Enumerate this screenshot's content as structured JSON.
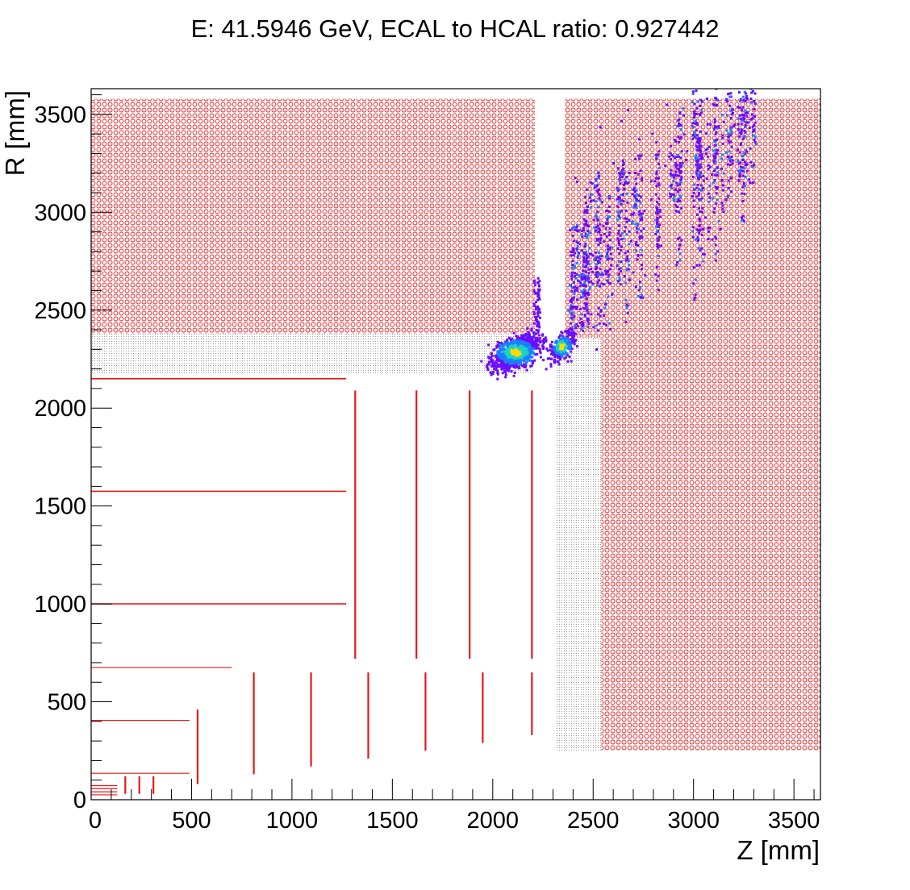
{
  "chart_data": {
    "type": "scatter",
    "title": "E: 41.5946 GeV, ECAL to HCAL ratio: 0.927442",
    "xlabel": "Z [mm]",
    "ylabel": "R [mm]",
    "xlim": [
      0,
      3630
    ],
    "ylim": [
      0,
      3630
    ],
    "x_ticks": [
      0,
      500,
      1000,
      1500,
      2000,
      2500,
      3000,
      3500
    ],
    "y_ticks": [
      0,
      500,
      1000,
      1500,
      2000,
      2500,
      3000,
      3500
    ],
    "x_tick_labels": [
      "0",
      "500",
      "1000",
      "1500",
      "2000",
      "2500",
      "3000",
      "3500"
    ],
    "y_tick_labels": [
      "0",
      "500",
      "1000",
      "1500",
      "2000",
      "2500",
      "3000",
      "3500"
    ],
    "grid": false,
    "legend": "none",
    "colors": {
      "detector": "#e31a1c",
      "hatch_grey": "#8a8a8a",
      "hit_low": "#6a0dff",
      "hit_mid": "#1a7fff",
      "hit_high": "#19d3c5",
      "hit_peak": "#ffd900"
    },
    "detector_regions": [
      {
        "name": "barrel-hcal",
        "style": "red-circles",
        "z": [
          0,
          2210
        ],
        "r": [
          2380,
          3580
        ]
      },
      {
        "name": "endcap-hcal",
        "style": "red-circles",
        "z": [
          2360,
          3630
        ],
        "r": [
          2360,
          3580
        ]
      },
      {
        "name": "endcap-hcal-lower",
        "style": "red-circles",
        "z": [
          2540,
          3630
        ],
        "r": [
          250,
          2360
        ]
      },
      {
        "name": "barrel-ecal",
        "style": "grey-dots",
        "z": [
          0,
          2210
        ],
        "r": [
          2170,
          2380
        ]
      },
      {
        "name": "endcap-ecal",
        "style": "grey-dots",
        "z": [
          2310,
          2540
        ],
        "r": [
          250,
          2360
        ]
      }
    ],
    "tracker_barrel_layers": [
      {
        "r": 2150,
        "z": [
          0,
          1270
        ]
      },
      {
        "r": 1575,
        "z": [
          0,
          1270
        ]
      },
      {
        "r": 1000,
        "z": [
          0,
          1270
        ]
      },
      {
        "r": 675,
        "z": [
          0,
          700
        ]
      },
      {
        "r": 405,
        "z": [
          0,
          490
        ]
      },
      {
        "r": 135,
        "z": [
          0,
          490
        ]
      },
      {
        "r": 72,
        "z": [
          0,
          130
        ]
      },
      {
        "r": 57,
        "z": [
          0,
          130
        ]
      },
      {
        "r": 40,
        "z": [
          0,
          130
        ]
      },
      {
        "r": 25,
        "z": [
          0,
          130
        ]
      }
    ],
    "tracker_endcap_disks": [
      {
        "z": 1315,
        "r": [
          720,
          2090
        ]
      },
      {
        "z": 1620,
        "r": [
          720,
          2090
        ]
      },
      {
        "z": 1885,
        "r": [
          720,
          2090
        ]
      },
      {
        "z": 2195,
        "r": [
          720,
          2090
        ]
      },
      {
        "z": 530,
        "r": [
          80,
          460
        ]
      },
      {
        "z": 810,
        "r": [
          130,
          650
        ]
      },
      {
        "z": 1095,
        "r": [
          170,
          650
        ]
      },
      {
        "z": 1380,
        "r": [
          210,
          650
        ]
      },
      {
        "z": 1665,
        "r": [
          250,
          650
        ]
      },
      {
        "z": 1950,
        "r": [
          290,
          650
        ]
      },
      {
        "z": 2195,
        "r": [
          330,
          650
        ]
      },
      {
        "z": 170,
        "r": [
          30,
          120
        ]
      },
      {
        "z": 240,
        "r": [
          30,
          120
        ]
      },
      {
        "z": 310,
        "r": [
          30,
          120
        ]
      }
    ],
    "hit_clusters": [
      {
        "name": "ecal-barrel-core",
        "z_center": 2110,
        "r_center": 2290,
        "spread_z": 60,
        "spread_r": 55
      },
      {
        "name": "ecal-endcap-core",
        "z_center": 2340,
        "r_center": 2320,
        "spread_z": 30,
        "spread_r": 45
      },
      {
        "name": "hcal-shower",
        "z_from": 2380,
        "z_to": 3300,
        "r_from": 2400,
        "r_to": 3600
      }
    ]
  }
}
